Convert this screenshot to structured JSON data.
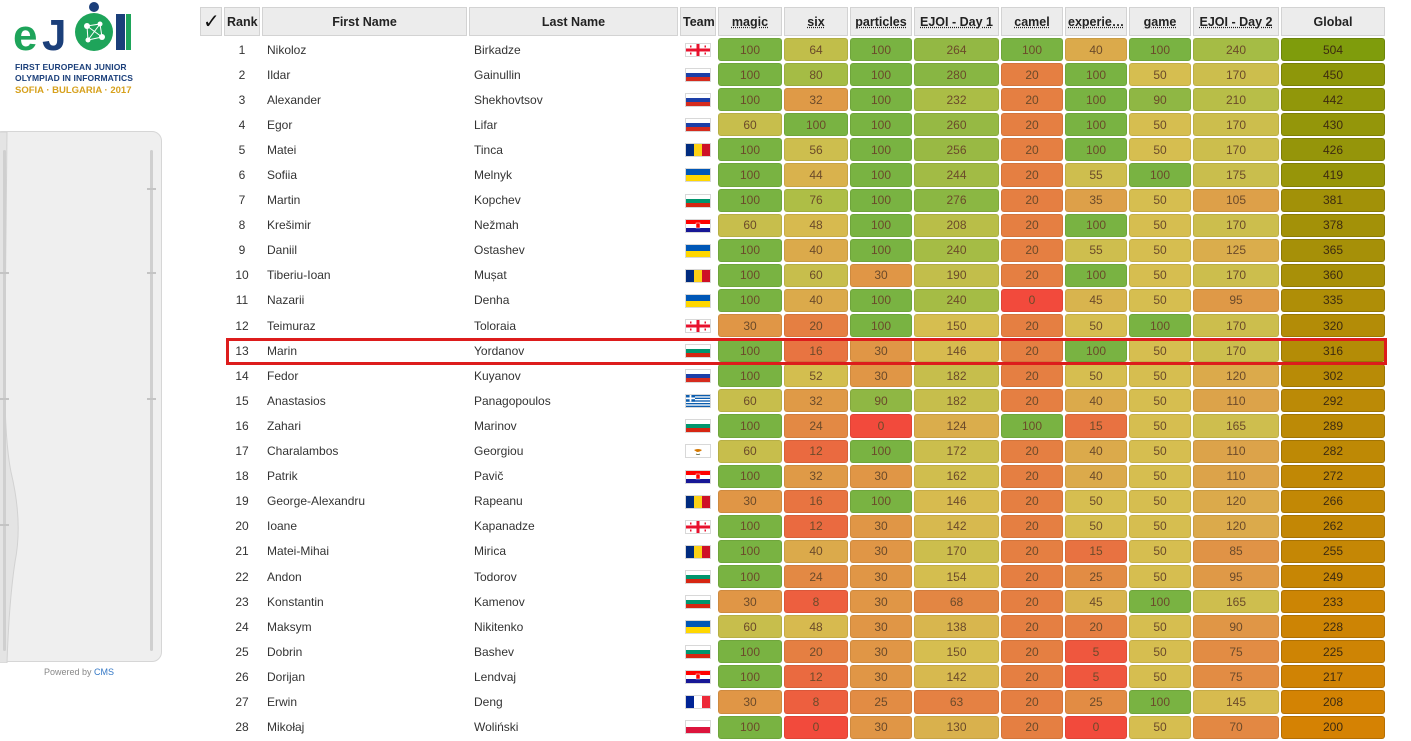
{
  "logo": {
    "mark": "eJOI",
    "side_text": "Bulgaria",
    "line1": "FIRST EUROPEAN JUNIOR",
    "line2": "OLYMPIAD IN INFORMATICS",
    "line3": "SOFIA · BULGARIA · 2017"
  },
  "footer": {
    "powered_by": "Powered by",
    "cms": "CMS"
  },
  "table": {
    "headers": {
      "check": "✓",
      "rank": "Rank",
      "first_name": "First Name",
      "last_name": "Last Name",
      "team": "Team",
      "tasks": [
        "magic",
        "six",
        "particles",
        "EJOI - Day 1",
        "camel",
        "experie…",
        "game",
        "EJOI - Day 2"
      ],
      "global": "Global"
    },
    "rows": [
      {
        "rank": "1",
        "first": "Nikoloz",
        "last": "Birkadze",
        "team": "GEO",
        "scores": [
          "100",
          "64",
          "100",
          "264",
          "100",
          "40",
          "100",
          "240"
        ],
        "global": "504"
      },
      {
        "rank": "2",
        "first": "Ildar",
        "last": "Gainullin",
        "team": "RUS",
        "scores": [
          "100",
          "80",
          "100",
          "280",
          "20",
          "100",
          "50",
          "170"
        ],
        "global": "450"
      },
      {
        "rank": "3",
        "first": "Alexander",
        "last": "Shekhovtsov",
        "team": "RUS",
        "scores": [
          "100",
          "32",
          "100",
          "232",
          "20",
          "100",
          "90",
          "210"
        ],
        "global": "442"
      },
      {
        "rank": "4",
        "first": "Egor",
        "last": "Lifar",
        "team": "RUS",
        "scores": [
          "60",
          "100",
          "100",
          "260",
          "20",
          "100",
          "50",
          "170"
        ],
        "global": "430"
      },
      {
        "rank": "5",
        "first": "Matei",
        "last": "Tinca",
        "team": "ROU",
        "scores": [
          "100",
          "56",
          "100",
          "256",
          "20",
          "100",
          "50",
          "170"
        ],
        "global": "426"
      },
      {
        "rank": "6",
        "first": "Sofiia",
        "last": "Melnyk",
        "team": "UKR",
        "scores": [
          "100",
          "44",
          "100",
          "244",
          "20",
          "55",
          "100",
          "175"
        ],
        "global": "419"
      },
      {
        "rank": "7",
        "first": "Martin",
        "last": "Kopchev",
        "team": "BGR",
        "scores": [
          "100",
          "76",
          "100",
          "276",
          "20",
          "35",
          "50",
          "105"
        ],
        "global": "381"
      },
      {
        "rank": "8",
        "first": "Krešimir",
        "last": "Nežmah",
        "team": "HRV",
        "scores": [
          "60",
          "48",
          "100",
          "208",
          "20",
          "100",
          "50",
          "170"
        ],
        "global": "378"
      },
      {
        "rank": "9",
        "first": "Daniil",
        "last": "Ostashev",
        "team": "UKR",
        "scores": [
          "100",
          "40",
          "100",
          "240",
          "20",
          "55",
          "50",
          "125"
        ],
        "global": "365"
      },
      {
        "rank": "10",
        "first": "Tiberiu-Ioan",
        "last": "Mușat",
        "team": "ROU",
        "scores": [
          "100",
          "60",
          "30",
          "190",
          "20",
          "100",
          "50",
          "170"
        ],
        "global": "360"
      },
      {
        "rank": "11",
        "first": "Nazarii",
        "last": "Denha",
        "team": "UKR",
        "scores": [
          "100",
          "40",
          "100",
          "240",
          "0",
          "45",
          "50",
          "95"
        ],
        "global": "335"
      },
      {
        "rank": "12",
        "first": "Teimuraz",
        "last": "Toloraia",
        "team": "GEO",
        "scores": [
          "30",
          "20",
          "100",
          "150",
          "20",
          "50",
          "100",
          "170"
        ],
        "global": "320"
      },
      {
        "rank": "13",
        "first": "Marin",
        "last": "Yordanov",
        "team": "BGR",
        "scores": [
          "100",
          "16",
          "30",
          "146",
          "20",
          "100",
          "50",
          "170"
        ],
        "global": "316"
      },
      {
        "rank": "14",
        "first": "Fedor",
        "last": "Kuyanov",
        "team": "RUS",
        "scores": [
          "100",
          "52",
          "30",
          "182",
          "20",
          "50",
          "50",
          "120"
        ],
        "global": "302"
      },
      {
        "rank": "15",
        "first": "Anastasios",
        "last": "Panagopoulos",
        "team": "GRC",
        "scores": [
          "60",
          "32",
          "90",
          "182",
          "20",
          "40",
          "50",
          "110"
        ],
        "global": "292"
      },
      {
        "rank": "16",
        "first": "Zahari",
        "last": "Marinov",
        "team": "BGR",
        "scores": [
          "100",
          "24",
          "0",
          "124",
          "100",
          "15",
          "50",
          "165"
        ],
        "global": "289"
      },
      {
        "rank": "17",
        "first": "Charalambos",
        "last": "Georgiou",
        "team": "CYP",
        "scores": [
          "60",
          "12",
          "100",
          "172",
          "20",
          "40",
          "50",
          "110"
        ],
        "global": "282"
      },
      {
        "rank": "18",
        "first": "Patrik",
        "last": "Pavič",
        "team": "HRV",
        "scores": [
          "100",
          "32",
          "30",
          "162",
          "20",
          "40",
          "50",
          "110"
        ],
        "global": "272"
      },
      {
        "rank": "19",
        "first": "George-Alexandru",
        "last": "Rapeanu",
        "team": "ROU",
        "scores": [
          "30",
          "16",
          "100",
          "146",
          "20",
          "50",
          "50",
          "120"
        ],
        "global": "266"
      },
      {
        "rank": "20",
        "first": "Ioane",
        "last": "Kapanadze",
        "team": "GEO",
        "scores": [
          "100",
          "12",
          "30",
          "142",
          "20",
          "50",
          "50",
          "120"
        ],
        "global": "262"
      },
      {
        "rank": "21",
        "first": "Matei-Mihai",
        "last": "Mirica",
        "team": "ROU",
        "scores": [
          "100",
          "40",
          "30",
          "170",
          "20",
          "15",
          "50",
          "85"
        ],
        "global": "255"
      },
      {
        "rank": "22",
        "first": "Andon",
        "last": "Todorov",
        "team": "BGR",
        "scores": [
          "100",
          "24",
          "30",
          "154",
          "20",
          "25",
          "50",
          "95"
        ],
        "global": "249"
      },
      {
        "rank": "23",
        "first": "Konstantin",
        "last": "Kamenov",
        "team": "BGR",
        "scores": [
          "30",
          "8",
          "30",
          "68",
          "20",
          "45",
          "100",
          "165"
        ],
        "global": "233"
      },
      {
        "rank": "24",
        "first": "Maksym",
        "last": "Nikitenko",
        "team": "UKR",
        "scores": [
          "60",
          "48",
          "30",
          "138",
          "20",
          "20",
          "50",
          "90"
        ],
        "global": "228"
      },
      {
        "rank": "25",
        "first": "Dobrin",
        "last": "Bashev",
        "team": "BGR",
        "scores": [
          "100",
          "20",
          "30",
          "150",
          "20",
          "5",
          "50",
          "75"
        ],
        "global": "225"
      },
      {
        "rank": "26",
        "first": "Dorijan",
        "last": "Lendvaj",
        "team": "HRV",
        "scores": [
          "100",
          "12",
          "30",
          "142",
          "20",
          "5",
          "50",
          "75"
        ],
        "global": "217"
      },
      {
        "rank": "27",
        "first": "Erwin",
        "last": "Deng",
        "team": "FRA",
        "scores": [
          "30",
          "8",
          "25",
          "63",
          "20",
          "25",
          "100",
          "145"
        ],
        "global": "208"
      },
      {
        "rank": "28",
        "first": "Mikołaj",
        "last": "Woliński",
        "team": "POL",
        "scores": [
          "100",
          "0",
          "30",
          "130",
          "20",
          "0",
          "50",
          "70"
        ],
        "global": "200"
      }
    ],
    "max_scores": [
      100,
      100,
      100,
      300,
      100,
      100,
      100,
      300
    ],
    "global_max": 600,
    "highlighted_rank": "13"
  },
  "colors": {
    "highlight_border": "#dd1c1c",
    "score_low": "#f24a3c",
    "score_mid": "#d9c04a",
    "score_high": "#79b342",
    "global_high": "#7f9c0c",
    "global_low": "#d58203",
    "cms_link": "#3478c6"
  }
}
